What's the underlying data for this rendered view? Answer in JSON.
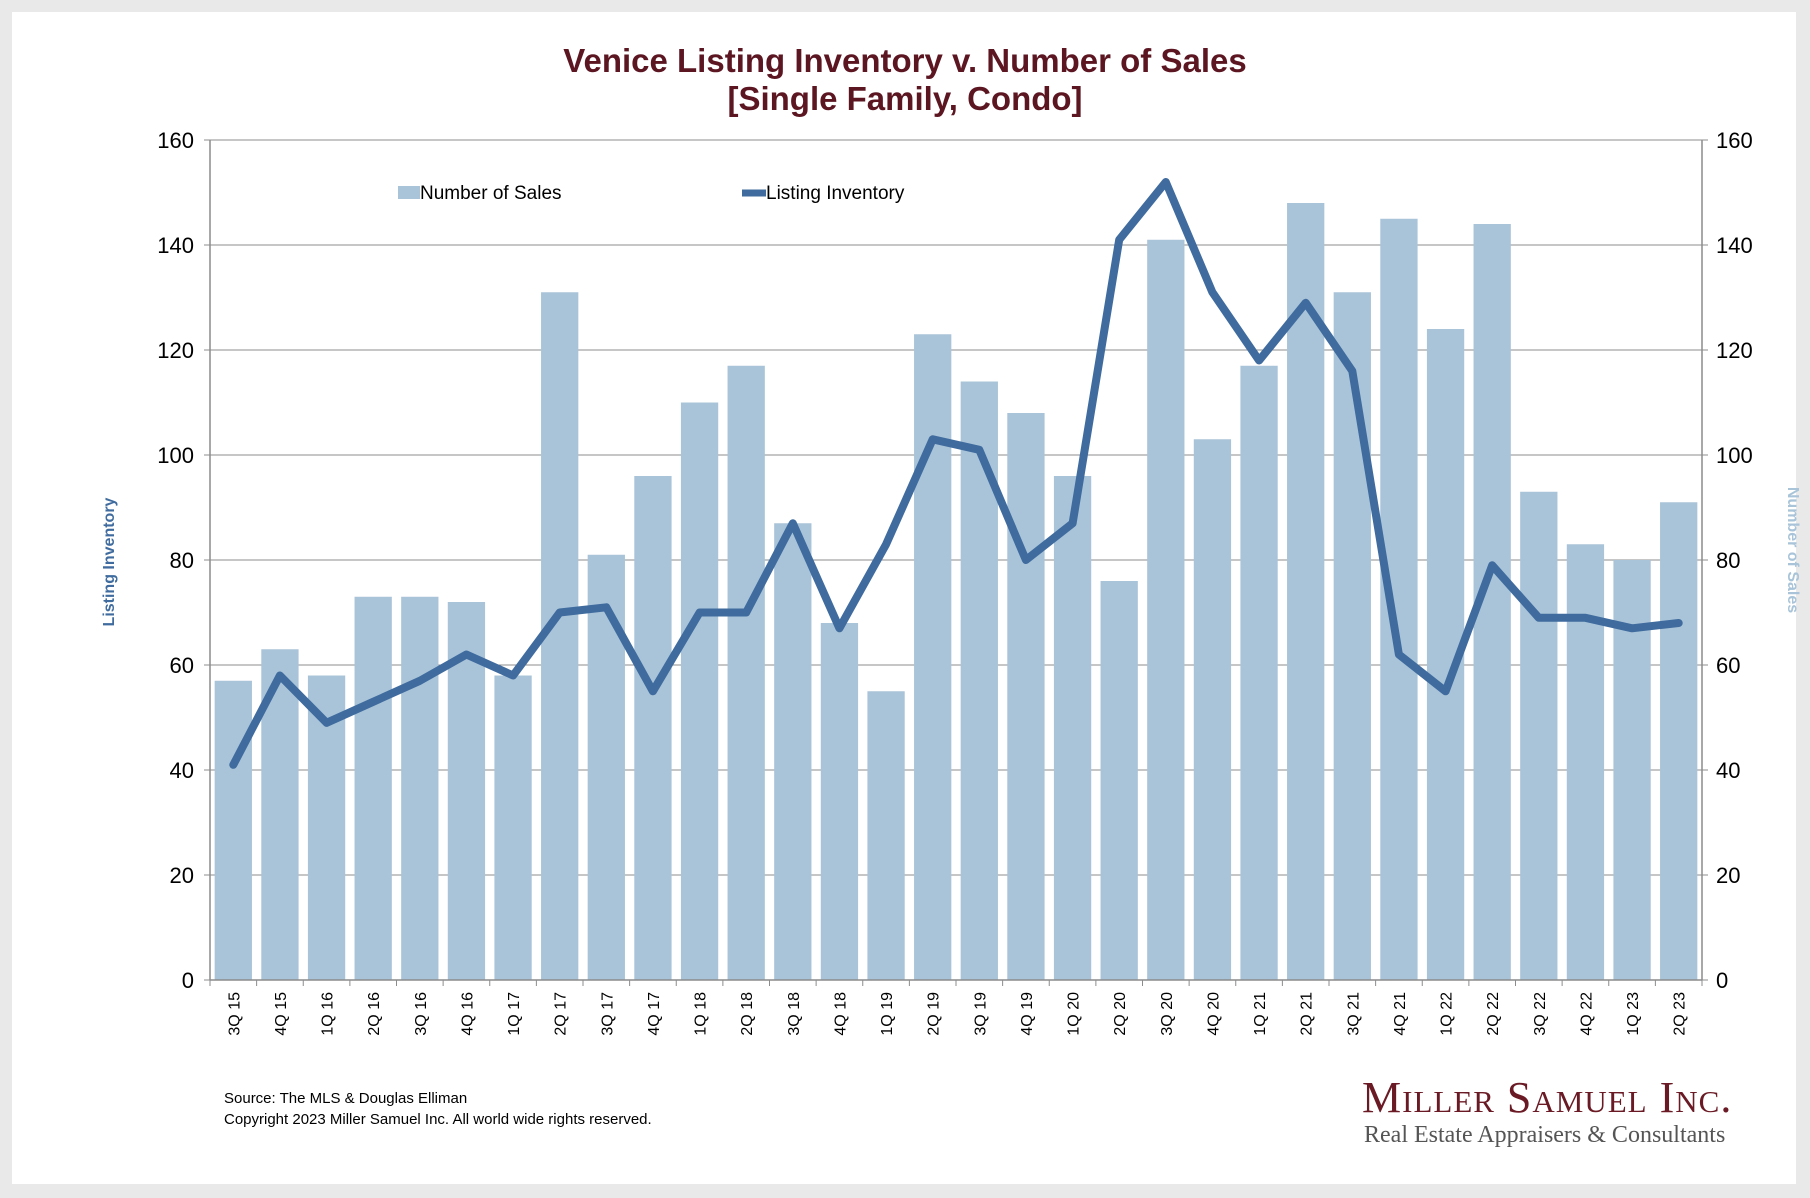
{
  "chart_data": {
    "type": "bar",
    "title": "Venice Listing Inventory v. Number of Sales",
    "subtitle": "[Single Family, Condo]",
    "categories": [
      "3Q 15",
      "4Q 15",
      "1Q 16",
      "2Q 16",
      "3Q 16",
      "4Q 16",
      "1Q 17",
      "2Q 17",
      "3Q 17",
      "4Q 17",
      "1Q 18",
      "2Q 18",
      "3Q 18",
      "4Q 18",
      "1Q 19",
      "2Q 19",
      "3Q 19",
      "4Q 19",
      "1Q 20",
      "2Q 20",
      "3Q 20",
      "4Q 20",
      "1Q 21",
      "2Q 21",
      "3Q 21",
      "4Q 21",
      "1Q 22",
      "2Q 22",
      "3Q 22",
      "4Q 22",
      "1Q 23",
      "2Q 23"
    ],
    "series": [
      {
        "name": "Number of Sales",
        "type": "bar",
        "axis": "right",
        "color": "#a9c4d9",
        "values": [
          57,
          63,
          58,
          73,
          73,
          72,
          58,
          131,
          81,
          96,
          110,
          117,
          87,
          68,
          55,
          123,
          114,
          108,
          96,
          76,
          141,
          103,
          117,
          148,
          131,
          145,
          124,
          144,
          93,
          83,
          80,
          91
        ]
      },
      {
        "name": "Listing Inventory",
        "type": "line",
        "axis": "left",
        "color": "#3f6b9e",
        "values": [
          41,
          58,
          49,
          53,
          57,
          62,
          58,
          70,
          71,
          55,
          70,
          70,
          87,
          67,
          83,
          103,
          101,
          80,
          87,
          141,
          152,
          131,
          118,
          129,
          116,
          62,
          55,
          79,
          69,
          69,
          67,
          68
        ]
      }
    ],
    "ylabel_left": "Listing Inventory",
    "ylabel_right": "Number of Sales",
    "ylim": [
      0,
      160
    ],
    "yticks": [
      0,
      20,
      40,
      60,
      80,
      100,
      120,
      140,
      160
    ],
    "grid": true,
    "legend_position": "top-left"
  },
  "footer": {
    "source": "Source: The MLS & Douglas Elliman",
    "copyright": "Copyright 2023 Miller Samuel Inc.  All world wide rights reserved."
  },
  "brand": {
    "name": "Miller Samuel Inc.",
    "tagline": "Real Estate Appraisers & Consultants"
  }
}
